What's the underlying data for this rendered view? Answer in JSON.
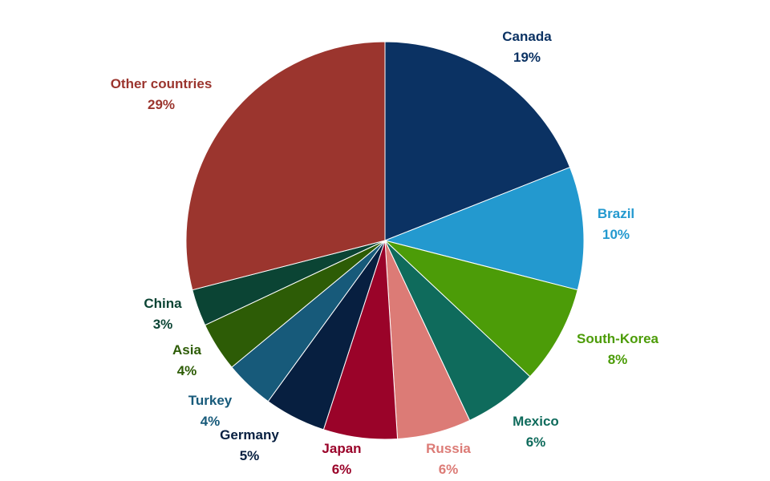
{
  "chart_data": {
    "type": "pie",
    "slices": [
      {
        "name": "Canada",
        "value": 19,
        "label": "19%",
        "color": "#0b3263"
      },
      {
        "name": "Brazil",
        "value": 10,
        "label": "10%",
        "color": "#2399cf"
      },
      {
        "name": "South-Korea",
        "value": 8,
        "label": "8%",
        "color": "#4c9c08"
      },
      {
        "name": "Mexico",
        "value": 6,
        "label": "6%",
        "color": "#0f6b5c"
      },
      {
        "name": "Russia",
        "value": 6,
        "label": "6%",
        "color": "#dc7b76"
      },
      {
        "name": "Japan",
        "value": 6,
        "label": "6%",
        "color": "#9a0329"
      },
      {
        "name": "Germany",
        "value": 5,
        "label": "5%",
        "color": "#071f40"
      },
      {
        "name": "Turkey",
        "value": 4,
        "label": "4%",
        "color": "#175a7a"
      },
      {
        "name": "Asia",
        "value": 4,
        "label": "4%",
        "color": "#2d5c06"
      },
      {
        "name": "China",
        "value": 3,
        "label": "3%",
        "color": "#0b4434"
      },
      {
        "name": "Other countries",
        "value": 29,
        "label": "29%",
        "color": "#9b352e"
      }
    ]
  }
}
